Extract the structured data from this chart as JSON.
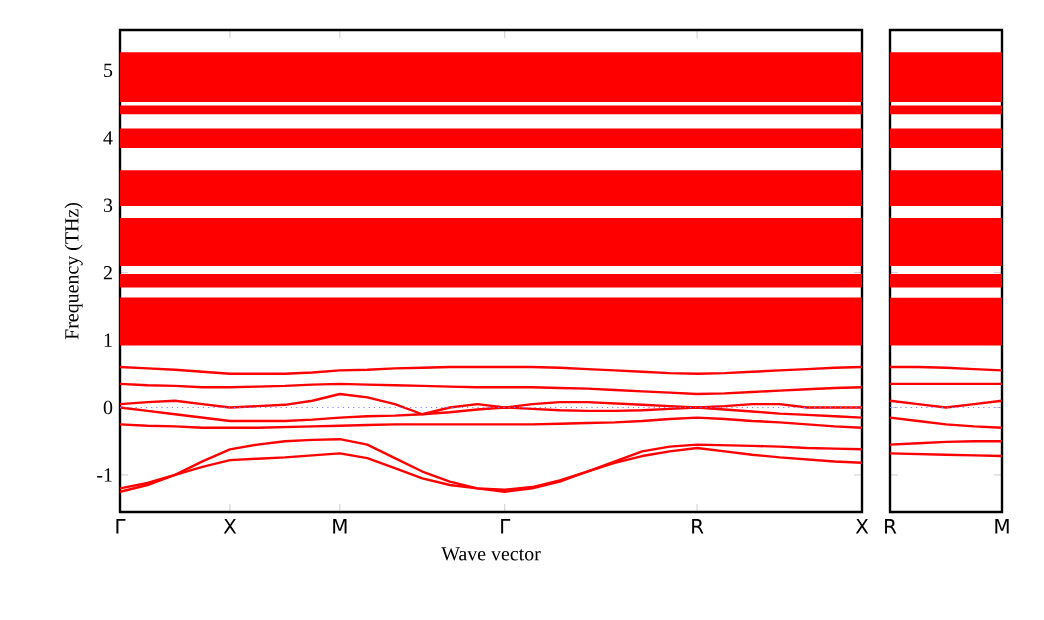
{
  "chart_data": [
    {
      "type": "line",
      "xlabel": "Wave vector",
      "ylabel": "Frequency (THz)",
      "categories": [
        "Γ",
        null,
        null,
        null,
        "X",
        null,
        null,
        null,
        "M",
        null,
        null,
        null,
        null,
        null,
        "Γ",
        null,
        null,
        null,
        null,
        null,
        null,
        "R",
        null,
        null,
        null,
        null,
        null,
        "X"
      ],
      "ylim": [
        -1.55,
        5.6
      ],
      "yticks": [
        -1,
        0,
        1,
        2,
        3,
        4,
        5
      ],
      "series": [
        {
          "color": "#ff0000",
          "values": [
            -1.25,
            -1.15,
            -1.0,
            -0.8,
            -0.62,
            -0.55,
            -0.5,
            -0.48,
            -0.47,
            -0.55,
            -0.75,
            -0.95,
            -1.1,
            -1.2,
            -1.25,
            -1.2,
            -1.1,
            -0.95,
            -0.8,
            -0.65,
            -0.58,
            -0.55,
            -0.56,
            -0.57,
            -0.58,
            -0.6,
            -0.61,
            -0.62
          ]
        },
        {
          "color": "#ff0000",
          "values": [
            -1.2,
            -1.12,
            -1.0,
            -0.88,
            -0.78,
            -0.76,
            -0.74,
            -0.71,
            -0.68,
            -0.75,
            -0.9,
            -1.05,
            -1.15,
            -1.2,
            -1.22,
            -1.18,
            -1.08,
            -0.95,
            -0.82,
            -0.72,
            -0.65,
            -0.6,
            -0.65,
            -0.7,
            -0.74,
            -0.77,
            -0.8,
            -0.82
          ]
        },
        {
          "color": "#ff0000",
          "values": [
            -0.25,
            -0.27,
            -0.28,
            -0.3,
            -0.3,
            -0.3,
            -0.29,
            -0.28,
            -0.27,
            -0.26,
            -0.25,
            -0.25,
            -0.25,
            -0.25,
            -0.25,
            -0.25,
            -0.24,
            -0.23,
            -0.22,
            -0.2,
            -0.17,
            -0.15,
            -0.17,
            -0.2,
            -0.22,
            -0.25,
            -0.28,
            -0.3
          ]
        },
        {
          "color": "#ff0000",
          "values": [
            0,
            -0.05,
            -0.1,
            -0.15,
            -0.2,
            -0.2,
            -0.2,
            -0.18,
            -0.15,
            -0.13,
            -0.12,
            -0.1,
            -0.07,
            -0.03,
            0,
            -0.02,
            -0.04,
            -0.05,
            -0.05,
            -0.04,
            -0.02,
            0,
            -0.03,
            -0.06,
            -0.09,
            -0.11,
            -0.13,
            -0.15
          ]
        },
        {
          "color": "#ff0000",
          "values": [
            0.05,
            0.08,
            0.1,
            0.05,
            0,
            0.02,
            0.04,
            0.1,
            0.2,
            0.15,
            0.05,
            -0.1,
            0,
            0.05,
            0,
            0.05,
            0.08,
            0.08,
            0.06,
            0.04,
            0.02,
            0,
            0.02,
            0.05,
            0.05,
            0,
            0,
            0
          ]
        },
        {
          "color": "#ff0000",
          "values": [
            0.35,
            0.33,
            0.32,
            0.3,
            0.3,
            0.31,
            0.32,
            0.34,
            0.35,
            0.34,
            0.33,
            0.32,
            0.31,
            0.3,
            0.3,
            0.3,
            0.29,
            0.28,
            0.26,
            0.24,
            0.22,
            0.2,
            0.21,
            0.23,
            0.25,
            0.27,
            0.29,
            0.3
          ]
        },
        {
          "color": "#ff0000",
          "values": [
            0.6,
            0.58,
            0.56,
            0.53,
            0.5,
            0.5,
            0.5,
            0.52,
            0.55,
            0.56,
            0.58,
            0.59,
            0.6,
            0.6,
            0.6,
            0.6,
            0.59,
            0.57,
            0.55,
            0.53,
            0.51,
            0.5,
            0.51,
            0.53,
            0.55,
            0.57,
            0.59,
            0.6
          ]
        }
      ],
      "bands": [
        {
          "axis": "y",
          "from": 4.53,
          "to": 5.27,
          "color": "#ff0000"
        },
        {
          "axis": "y",
          "from": 4.35,
          "to": 4.48,
          "color": "#ff0000"
        },
        {
          "axis": "y",
          "from": 3.85,
          "to": 4.14,
          "color": "#ff0000"
        },
        {
          "axis": "y",
          "from": 2.99,
          "to": 3.52,
          "color": "#ff0000"
        },
        {
          "axis": "y",
          "from": 2.1,
          "to": 2.81,
          "color": "#ff0000"
        },
        {
          "axis": "y",
          "from": 1.78,
          "to": 1.98,
          "color": "#ff0000"
        },
        {
          "axis": "y",
          "from": 0.92,
          "to": 1.63,
          "color": "#ff0000"
        }
      ],
      "ref_lines": [
        {
          "axis": "y",
          "value": 0,
          "color": "#7f7fff",
          "line_style": "dotted"
        }
      ]
    },
    {
      "type": "line",
      "tick_labels": "x",
      "categories": [
        "R",
        null,
        null,
        null,
        "M"
      ],
      "ylim": [
        -1.55,
        5.6
      ],
      "yticks": [
        -1,
        0,
        1,
        2,
        3,
        4,
        5
      ],
      "series": [
        {
          "color": "#ff0000",
          "values": [
            -0.55,
            -0.53,
            -0.51,
            -0.5,
            -0.5
          ]
        },
        {
          "color": "#ff0000",
          "values": [
            -0.68,
            -0.69,
            -0.7,
            -0.71,
            -0.72
          ]
        },
        {
          "color": "#ff0000",
          "values": [
            -0.15,
            -0.2,
            -0.25,
            -0.28,
            -0.3
          ]
        },
        {
          "color": "#ff0000",
          "values": [
            0.1,
            0.05,
            0.0,
            0.05,
            0.1
          ]
        },
        {
          "color": "#ff0000",
          "values": [
            0.35,
            0.35,
            0.35,
            0.35,
            0.35
          ]
        },
        {
          "color": "#ff0000",
          "values": [
            0.6,
            0.6,
            0.59,
            0.57,
            0.55
          ]
        }
      ],
      "bands": [
        {
          "axis": "y",
          "from": 4.53,
          "to": 5.27,
          "color": "#ff0000"
        },
        {
          "axis": "y",
          "from": 4.35,
          "to": 4.48,
          "color": "#ff0000"
        },
        {
          "axis": "y",
          "from": 3.85,
          "to": 4.14,
          "color": "#ff0000"
        },
        {
          "axis": "y",
          "from": 2.99,
          "to": 3.52,
          "color": "#ff0000"
        },
        {
          "axis": "y",
          "from": 2.1,
          "to": 2.81,
          "color": "#ff0000"
        },
        {
          "axis": "y",
          "from": 1.78,
          "to": 1.98,
          "color": "#ff0000"
        },
        {
          "axis": "y",
          "from": 0.92,
          "to": 1.63,
          "color": "#ff0000"
        }
      ],
      "ref_lines": [
        {
          "axis": "y",
          "value": 0,
          "color": "#7f7fff",
          "line_style": "dotted"
        }
      ]
    }
  ]
}
